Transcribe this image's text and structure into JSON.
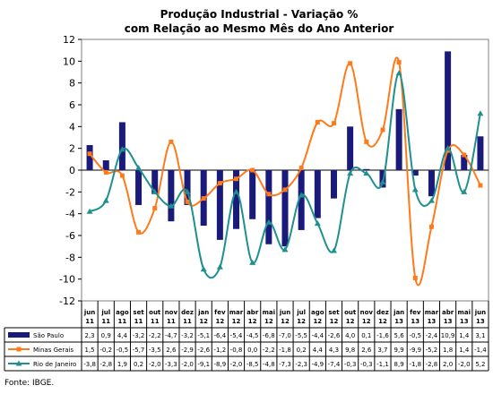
{
  "chart_data": {
    "type": "bar",
    "title": "Produção Industrial - Variação %",
    "subtitle": "com Relação ao Mesmo Mês do Ano Anterior",
    "categories": [
      [
        "jun",
        "11"
      ],
      [
        "jul",
        "11"
      ],
      [
        "ago",
        "11"
      ],
      [
        "set",
        "11"
      ],
      [
        "out",
        "11"
      ],
      [
        "nov",
        "11"
      ],
      [
        "dez",
        "11"
      ],
      [
        "jan",
        "12"
      ],
      [
        "fev",
        "12"
      ],
      [
        "mar",
        "12"
      ],
      [
        "abr",
        "12"
      ],
      [
        "mai",
        "12"
      ],
      [
        "jun",
        "12"
      ],
      [
        "jul",
        "12"
      ],
      [
        "ago",
        "12"
      ],
      [
        "set",
        "12"
      ],
      [
        "out",
        "12"
      ],
      [
        "nov",
        "12"
      ],
      [
        "dez",
        "12"
      ],
      [
        "jan",
        "13"
      ],
      [
        "fev",
        "13"
      ],
      [
        "mar",
        "13"
      ],
      [
        "abr",
        "13"
      ],
      [
        "mai",
        "13"
      ],
      [
        "jun",
        "13"
      ]
    ],
    "ylim": [
      -12,
      12
    ],
    "yticks": [
      -12,
      -10,
      -8,
      -6,
      -4,
      -2,
      0,
      2,
      4,
      6,
      8,
      10,
      12
    ],
    "grid": false,
    "series": [
      {
        "name": "São Paulo",
        "type": "bar",
        "color": "#1a1a7a",
        "values": [
          2.3,
          0.9,
          4.4,
          -3.2,
          -2.2,
          -4.7,
          -3.2,
          -5.1,
          -6.4,
          -5.4,
          -4.5,
          -6.8,
          -7.0,
          -5.5,
          -4.4,
          -2.6,
          4.0,
          0.1,
          -1.6,
          5.6,
          -0.5,
          -2.4,
          10.9,
          1.4,
          3.1
        ],
        "labels": [
          "2,3",
          "0,9",
          "4,4",
          "-3,2",
          "-2,2",
          "-4,7",
          "-3,2",
          "-5,1",
          "-6,4",
          "-5,4",
          "-4,5",
          "-6,8",
          "-7,0",
          "-5,5",
          "-4,4",
          "-2,6",
          "4,0",
          "0,1",
          "-1,6",
          "5,6",
          "-0,5",
          "-2,4",
          "10,9",
          "1,4",
          "3,1"
        ]
      },
      {
        "name": "Minas Gerais",
        "type": "line",
        "color": "#ff7a1a",
        "marker": "square",
        "values": [
          1.5,
          -0.2,
          -0.5,
          -5.7,
          -3.5,
          2.6,
          -2.9,
          -2.6,
          -1.2,
          -0.8,
          0.0,
          -2.2,
          -1.8,
          0.2,
          4.4,
          4.3,
          9.8,
          2.6,
          3.7,
          9.9,
          -9.9,
          -5.2,
          1.8,
          1.4,
          -1.4
        ],
        "labels": [
          "1,5",
          "-0,2",
          "-0,5",
          "-5,7",
          "-3,5",
          "2,6",
          "-2,9",
          "-2,6",
          "-1,2",
          "-0,8",
          "0,0",
          "-2,2",
          "-1,8",
          "0,2",
          "4,4",
          "4,3",
          "9,8",
          "2,6",
          "3,7",
          "9,9",
          "-9,9",
          "-5,2",
          "1,8",
          "1,4",
          "-1,4"
        ]
      },
      {
        "name": "Rio de Janeiro",
        "type": "line",
        "color": "#1f9090",
        "marker": "triangle",
        "values": [
          -3.8,
          -2.8,
          1.9,
          0.2,
          -2.0,
          -3.3,
          -2.0,
          -9.1,
          -8.9,
          -2.0,
          -8.5,
          -4.8,
          -7.3,
          -2.3,
          -4.9,
          -7.4,
          -0.3,
          -0.3,
          -1.1,
          8.9,
          -1.8,
          -2.8,
          2.0,
          -2.0,
          5.2
        ],
        "labels": [
          "-3,8",
          "-2,8",
          "1,9",
          "0,2",
          "-2,0",
          "-3,3",
          "-2,0",
          "-9,1",
          "-8,9",
          "-2,0",
          "-8,5",
          "-4,8",
          "-7,3",
          "-2,3",
          "-4,9",
          "-7,4",
          "-0,3",
          "-0,3",
          "-1,1",
          "8,9",
          "-1,8",
          "-2,8",
          "2,0",
          "-2,0",
          "5,2"
        ]
      }
    ],
    "source": "Fonte: IBGE."
  }
}
